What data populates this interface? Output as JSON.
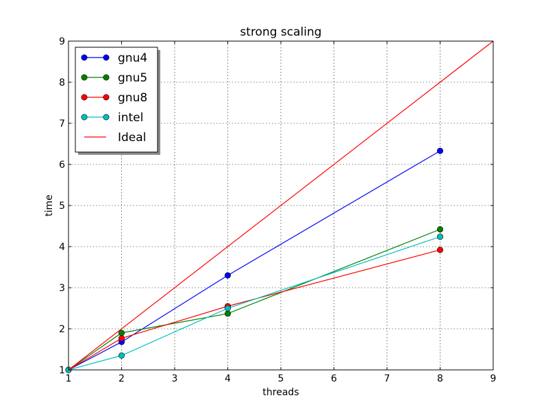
{
  "chart_data": {
    "type": "line",
    "title": "strong scaling",
    "xlabel": "threads",
    "ylabel": "time",
    "xlim": [
      1,
      9
    ],
    "ylim": [
      1,
      9
    ],
    "xticks": [
      1,
      2,
      3,
      4,
      5,
      6,
      7,
      8,
      9
    ],
    "yticks": [
      1,
      2,
      3,
      4,
      5,
      6,
      7,
      8,
      9
    ],
    "grid": true,
    "legend_position": "top-left",
    "series": [
      {
        "name": "gnu4",
        "color": "#0000ff",
        "marker": true,
        "x": [
          1,
          2,
          4,
          8
        ],
        "y": [
          1.0,
          1.68,
          3.3,
          6.33
        ]
      },
      {
        "name": "gnu5",
        "color": "#008000",
        "marker": true,
        "x": [
          1,
          2,
          4,
          8
        ],
        "y": [
          1.0,
          1.9,
          2.37,
          4.42
        ]
      },
      {
        "name": "gnu8",
        "color": "#ff0000",
        "marker": true,
        "x": [
          1,
          2,
          4,
          8
        ],
        "y": [
          1.0,
          1.77,
          2.55,
          3.92
        ]
      },
      {
        "name": "intel",
        "color": "#00bfbf",
        "marker": true,
        "x": [
          1,
          2,
          4,
          8
        ],
        "y": [
          1.0,
          1.35,
          2.5,
          4.24
        ]
      },
      {
        "name": "Ideal",
        "color": "#ff0000",
        "marker": false,
        "x": [
          1,
          9
        ],
        "y": [
          1,
          9
        ]
      }
    ]
  }
}
